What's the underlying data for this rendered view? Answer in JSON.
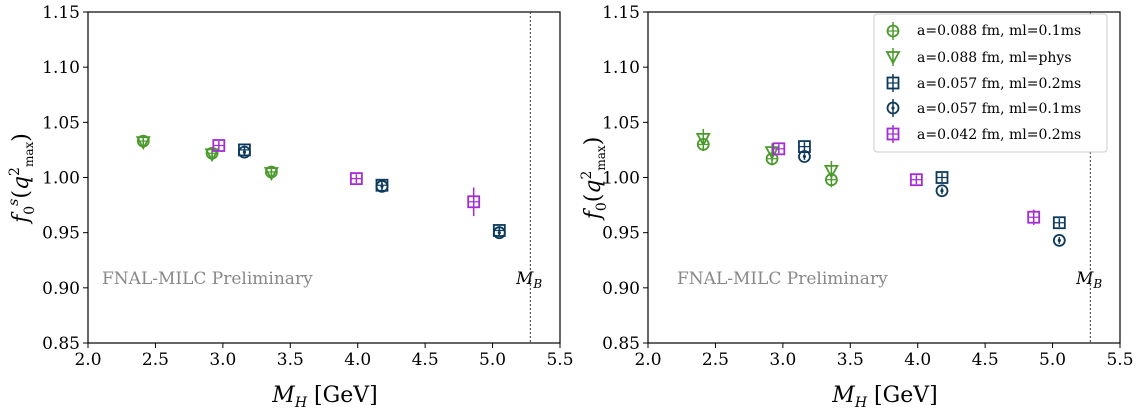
{
  "chart_data": [
    {
      "type": "scatter",
      "xlabel": "M_H [GeV]",
      "ylabel": "f_0^s(q^2_max)",
      "xlim": [
        2.0,
        5.5
      ],
      "ylim": [
        0.85,
        1.15
      ],
      "xticks": [
        "2.0",
        "2.5",
        "3.0",
        "3.5",
        "4.0",
        "4.5",
        "5.0",
        "5.5"
      ],
      "yticks": [
        "0.85",
        "0.90",
        "0.95",
        "1.00",
        "1.05",
        "1.10",
        "1.15"
      ],
      "annotation": "FNAL-MILC Preliminary",
      "vline": {
        "x": 5.28,
        "label": "M_B"
      },
      "series": [
        {
          "marker": "circle-hline",
          "color": "#4b9a2c",
          "points": [
            {
              "x": 2.41,
              "y": 1.033,
              "err": 0.004
            },
            {
              "x": 2.92,
              "y": 1.022,
              "err": 0.004
            },
            {
              "x": 3.36,
              "y": 1.005,
              "err": 0.004
            }
          ]
        },
        {
          "marker": "triangle-down",
          "color": "#4b9a2c",
          "points": [
            {
              "x": 2.41,
              "y": 1.032,
              "err": 0.003
            },
            {
              "x": 2.92,
              "y": 1.021,
              "err": 0.003
            },
            {
              "x": 3.36,
              "y": 1.004,
              "err": 0.003
            }
          ]
        },
        {
          "marker": "square-hline",
          "color": "#0d3a5c",
          "points": [
            {
              "x": 3.16,
              "y": 1.025,
              "err": 0.004
            },
            {
              "x": 4.18,
              "y": 0.993,
              "err": 0.004
            },
            {
              "x": 5.05,
              "y": 0.952,
              "err": 0.004
            }
          ]
        },
        {
          "marker": "circle-dot",
          "color": "#0d3a5c",
          "points": [
            {
              "x": 3.16,
              "y": 1.023,
              "err": 0.003
            },
            {
              "x": 4.18,
              "y": 0.992,
              "err": 0.003
            },
            {
              "x": 5.05,
              "y": 0.95,
              "err": 0.003
            }
          ]
        },
        {
          "marker": "square-hline",
          "color": "#a42cd6",
          "points": [
            {
              "x": 2.97,
              "y": 1.029,
              "err": 0.004
            },
            {
              "x": 3.99,
              "y": 0.999,
              "err": 0.004
            },
            {
              "x": 4.86,
              "y": 0.978,
              "err": 0.013
            }
          ]
        }
      ]
    },
    {
      "type": "scatter",
      "xlabel": "M_H [GeV]",
      "ylabel": "f_0(q^2_max)",
      "xlim": [
        2.0,
        5.5
      ],
      "ylim": [
        0.85,
        1.15
      ],
      "xticks": [
        "2.0",
        "2.5",
        "3.0",
        "3.5",
        "4.0",
        "4.5",
        "5.0",
        "5.5"
      ],
      "yticks": [
        "0.85",
        "0.90",
        "0.95",
        "1.00",
        "1.05",
        "1.10",
        "1.15"
      ],
      "annotation": "FNAL-MILC Preliminary",
      "vline": {
        "x": 5.28,
        "label": "M_B"
      },
      "legend_position": "top-right",
      "series": [
        {
          "name": "a=0.088 fm, ml=0.1ms",
          "marker": "circle-hline",
          "color": "#4b9a2c",
          "points": [
            {
              "x": 2.41,
              "y": 1.03,
              "err": 0.006
            },
            {
              "x": 2.92,
              "y": 1.017,
              "err": 0.006
            },
            {
              "x": 3.36,
              "y": 0.998,
              "err": 0.007
            }
          ]
        },
        {
          "name": "a=0.088 fm, ml=phys",
          "marker": "triangle-down",
          "color": "#4b9a2c",
          "points": [
            {
              "x": 2.41,
              "y": 1.035,
              "err": 0.009
            },
            {
              "x": 2.92,
              "y": 1.023,
              "err": 0.008
            },
            {
              "x": 3.36,
              "y": 1.006,
              "err": 0.009
            }
          ]
        },
        {
          "name": "a=0.057 fm, ml=0.2ms",
          "marker": "square-hline",
          "color": "#0d3a5c",
          "points": [
            {
              "x": 3.16,
              "y": 1.028,
              "err": 0.004
            },
            {
              "x": 4.18,
              "y": 1.0,
              "err": 0.004
            },
            {
              "x": 5.05,
              "y": 0.959,
              "err": 0.004
            }
          ]
        },
        {
          "name": "a=0.057 fm, ml=0.1ms",
          "marker": "circle-dot",
          "color": "#0d3a5c",
          "points": [
            {
              "x": 3.16,
              "y": 1.019,
              "err": 0.003
            },
            {
              "x": 4.18,
              "y": 0.988,
              "err": 0.003
            },
            {
              "x": 5.05,
              "y": 0.943,
              "err": 0.003
            }
          ]
        },
        {
          "name": "a=0.042 fm, ml=0.2ms",
          "marker": "square-hline",
          "color": "#a42cd6",
          "points": [
            {
              "x": 2.97,
              "y": 1.026,
              "err": 0.004
            },
            {
              "x": 3.99,
              "y": 0.998,
              "err": 0.004
            },
            {
              "x": 4.86,
              "y": 0.964,
              "err": 0.007
            }
          ]
        }
      ]
    }
  ]
}
